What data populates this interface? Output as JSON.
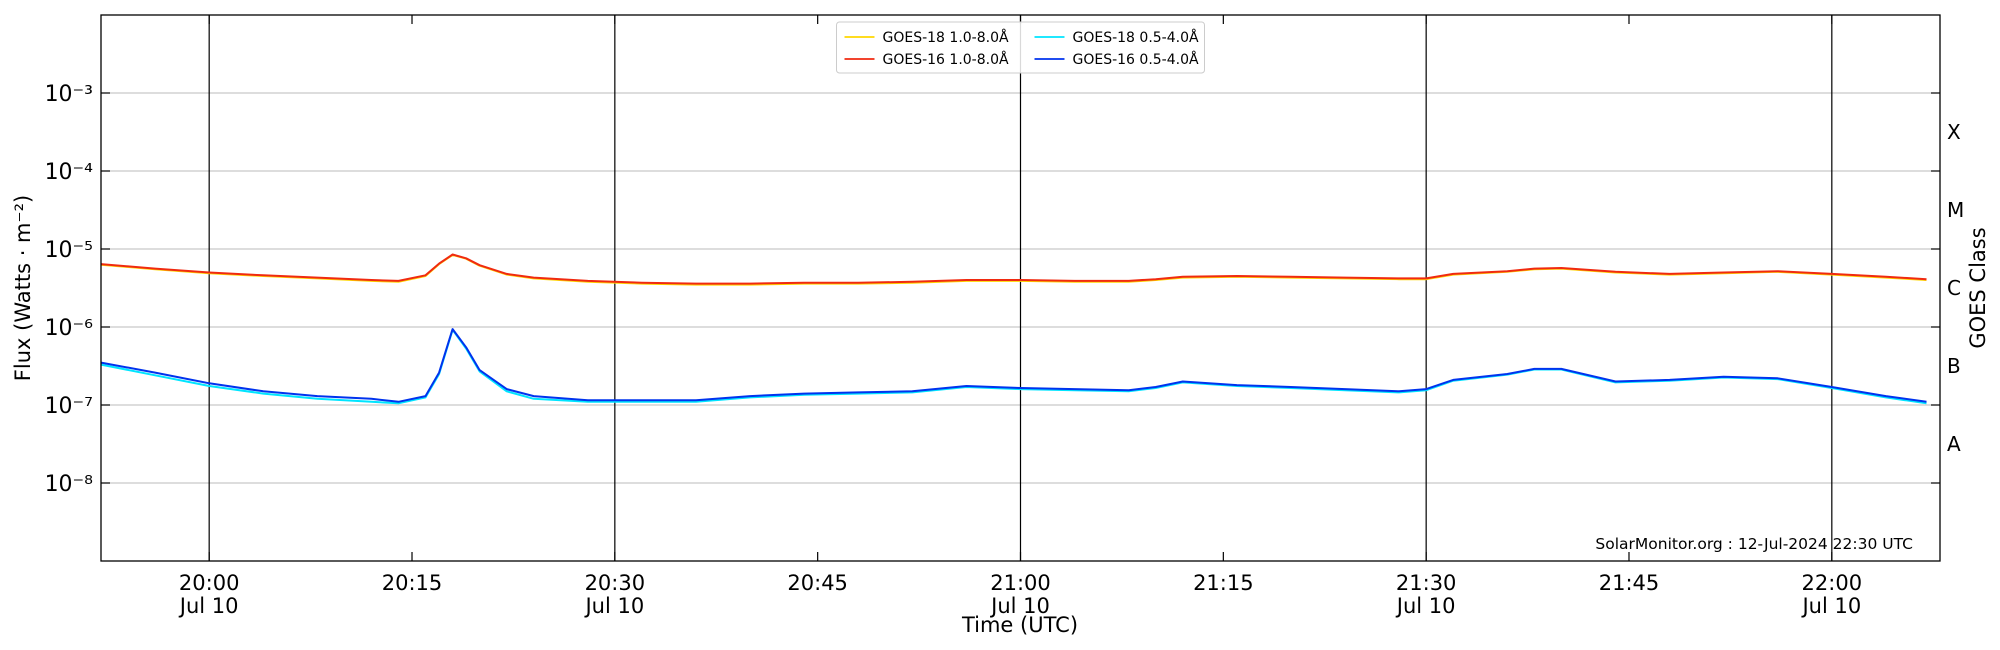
{
  "chart_data": {
    "type": "line",
    "xlabel": "Time (UTC)",
    "ylabel": "Flux (Watts · m⁻²)",
    "y2label": "GOES Class",
    "annotation": "SolarMonitor.org : 12-Jul-2024 22:30 UTC",
    "log_y": true,
    "grid": true,
    "legend": "upper center",
    "xlim": [
      "19:52",
      "22:08"
    ],
    "ylim": [
      1e-09,
      0.01
    ],
    "y2lim": [
      1e-09,
      0.01
    ],
    "xticks": [
      {
        "value": "20:00",
        "label": [
          "20:00",
          "Jul 10"
        ]
      },
      "20:15",
      {
        "value": "20:30",
        "label": [
          "20:30",
          "Jul 10"
        ]
      },
      "20:45",
      {
        "value": "21:00",
        "label": [
          "21:00",
          "Jul 10"
        ]
      },
      "21:15",
      {
        "value": "21:30",
        "label": [
          "21:30",
          "Jul 10"
        ]
      },
      "21:45",
      {
        "value": "22:00",
        "label": [
          "22:00",
          "Jul 10"
        ]
      }
    ],
    "yticks": [
      {
        "value": 1e-08,
        "label": "10⁻⁸"
      },
      {
        "value": 1e-07,
        "label": "10⁻⁷"
      },
      {
        "value": 1e-06,
        "label": "10⁻⁶"
      },
      {
        "value": 1e-05,
        "label": "10⁻⁵"
      },
      {
        "value": 0.0001,
        "label": "10⁻⁴"
      },
      {
        "value": 0.001,
        "label": "10⁻³"
      }
    ],
    "y2ticks": [
      {
        "value": 3.16e-08,
        "label": "A"
      },
      {
        "value": 3.16e-07,
        "label": "B"
      },
      {
        "value": 3.16e-06,
        "label": "C"
      },
      {
        "value": 3.16e-05,
        "label": "M"
      },
      {
        "value": 0.000316,
        "label": "X"
      }
    ],
    "x": [
      "19:52",
      "19:56",
      "20:00",
      "20:04",
      "20:08",
      "20:12",
      "20:14",
      "20:16",
      "20:17",
      "20:18",
      "20:19",
      "20:20",
      "20:22",
      "20:24",
      "20:28",
      "20:32",
      "20:36",
      "20:40",
      "20:44",
      "20:48",
      "20:52",
      "20:56",
      "21:00",
      "21:04",
      "21:08",
      "21:10",
      "21:12",
      "21:16",
      "21:20",
      "21:24",
      "21:28",
      "21:30",
      "21:32",
      "21:36",
      "21:38",
      "21:40",
      "21:44",
      "21:48",
      "21:52",
      "21:56",
      "22:00",
      "22:04",
      "22:07"
    ],
    "series": [
      {
        "name": "GOES-18 1.0-8.0Å",
        "color": "#ffd700",
        "values": [
          6.3e-06,
          5.5e-06,
          4.9e-06,
          4.5e-06,
          4.2e-06,
          3.9e-06,
          3.8e-06,
          4.5e-06,
          6.4e-06,
          8.4e-06,
          7.5e-06,
          6.1e-06,
          4.7e-06,
          4.2e-06,
          3.8e-06,
          3.6e-06,
          3.5e-06,
          3.5e-06,
          3.6e-06,
          3.6e-06,
          3.7e-06,
          3.9e-06,
          3.9e-06,
          3.8e-06,
          3.8e-06,
          4e-06,
          4.3e-06,
          4.4e-06,
          4.3e-06,
          4.2e-06,
          4.1e-06,
          4.1e-06,
          4.7e-06,
          5.1e-06,
          5.5e-06,
          5.6e-06,
          5e-06,
          4.7e-06,
          4.9e-06,
          5.1e-06,
          4.7e-06,
          4.3e-06,
          4e-06
        ]
      },
      {
        "name": "GOES-16 1.0-8.0Å",
        "color": "#f02a10",
        "values": [
          6.4e-06,
          5.6e-06,
          5e-06,
          4.6e-06,
          4.3e-06,
          4e-06,
          3.9e-06,
          4.6e-06,
          6.5e-06,
          8.5e-06,
          7.6e-06,
          6.2e-06,
          4.8e-06,
          4.3e-06,
          3.9e-06,
          3.7e-06,
          3.6e-06,
          3.6e-06,
          3.7e-06,
          3.7e-06,
          3.8e-06,
          4e-06,
          4e-06,
          3.9e-06,
          3.9e-06,
          4.1e-06,
          4.4e-06,
          4.5e-06,
          4.4e-06,
          4.3e-06,
          4.2e-06,
          4.2e-06,
          4.8e-06,
          5.2e-06,
          5.6e-06,
          5.7e-06,
          5.1e-06,
          4.8e-06,
          5e-06,
          5.2e-06,
          4.8e-06,
          4.4e-06,
          4.1e-06
        ]
      },
      {
        "name": "GOES-18 0.5-4.0Å",
        "color": "#00e5ff",
        "values": [
          3.3e-07,
          2.4e-07,
          1.75e-07,
          1.4e-07,
          1.2e-07,
          1.1e-07,
          1.05e-07,
          1.25e-07,
          2.5e-07,
          9.2e-07,
          5.3e-07,
          2.7e-07,
          1.5e-07,
          1.2e-07,
          1.1e-07,
          1.1e-07,
          1.1e-07,
          1.25e-07,
          1.35e-07,
          1.4e-07,
          1.45e-07,
          1.7e-07,
          1.6e-07,
          1.55e-07,
          1.5e-07,
          1.65e-07,
          1.95e-07,
          1.75e-07,
          1.65e-07,
          1.55e-07,
          1.45e-07,
          1.55e-07,
          2.05e-07,
          2.45e-07,
          2.85e-07,
          2.85e-07,
          1.95e-07,
          2.05e-07,
          2.25e-07,
          2.15e-07,
          1.65e-07,
          1.25e-07,
          1.05e-07
        ]
      },
      {
        "name": "GOES-16 0.5-4.0Å",
        "color": "#0033ee",
        "values": [
          3.5e-07,
          2.6e-07,
          1.9e-07,
          1.5e-07,
          1.3e-07,
          1.2e-07,
          1.1e-07,
          1.3e-07,
          2.6e-07,
          9.4e-07,
          5.5e-07,
          2.8e-07,
          1.6e-07,
          1.3e-07,
          1.15e-07,
          1.15e-07,
          1.15e-07,
          1.3e-07,
          1.4e-07,
          1.45e-07,
          1.5e-07,
          1.75e-07,
          1.65e-07,
          1.6e-07,
          1.55e-07,
          1.7e-07,
          2e-07,
          1.8e-07,
          1.7e-07,
          1.6e-07,
          1.5e-07,
          1.6e-07,
          2.1e-07,
          2.5e-07,
          2.9e-07,
          2.9e-07,
          2e-07,
          2.1e-07,
          2.3e-07,
          2.2e-07,
          1.7e-07,
          1.3e-07,
          1.1e-07
        ]
      }
    ]
  }
}
